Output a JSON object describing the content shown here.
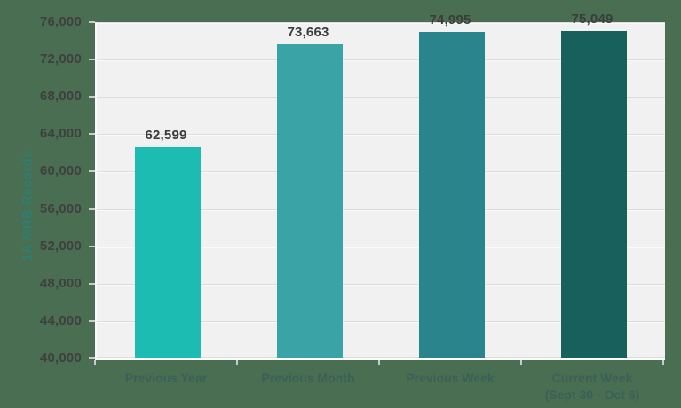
{
  "chart_data": {
    "type": "bar",
    "title": "",
    "ylabel": "1A MRB Records",
    "xlabel": "",
    "categories": [
      {
        "lines": [
          "Previous Year"
        ]
      },
      {
        "lines": [
          "Previous Month"
        ]
      },
      {
        "lines": [
          "Previous Week"
        ]
      },
      {
        "lines": [
          "Current Week",
          "(Sept 30 - Oct 6)"
        ]
      }
    ],
    "values": [
      62599,
      73663,
      74995,
      75049
    ],
    "value_labels": [
      "62,599",
      "73,663",
      "74,995",
      "75,049"
    ],
    "ylim": [
      40000,
      76000
    ],
    "ytick_step": 4000,
    "ytick_labels": [
      "76,000",
      "72,000",
      "68,000",
      "64,000",
      "60,000",
      "56,000",
      "52,000",
      "48,000",
      "44,000",
      "40,000"
    ],
    "grid": true,
    "legend_position": "none",
    "bar_colors": [
      "#1dbcb3",
      "#39a3a6",
      "#29848c",
      "#17605b"
    ],
    "colors": {
      "page_background": "#4a6e52",
      "plot_background": "#f1f1f2",
      "gridline": "#dcdcdc",
      "tick_text": "#3f4040",
      "value_text": "#3b3c3c",
      "category_text": "#3c5f59",
      "y_title_text": "#2f7e72"
    }
  }
}
